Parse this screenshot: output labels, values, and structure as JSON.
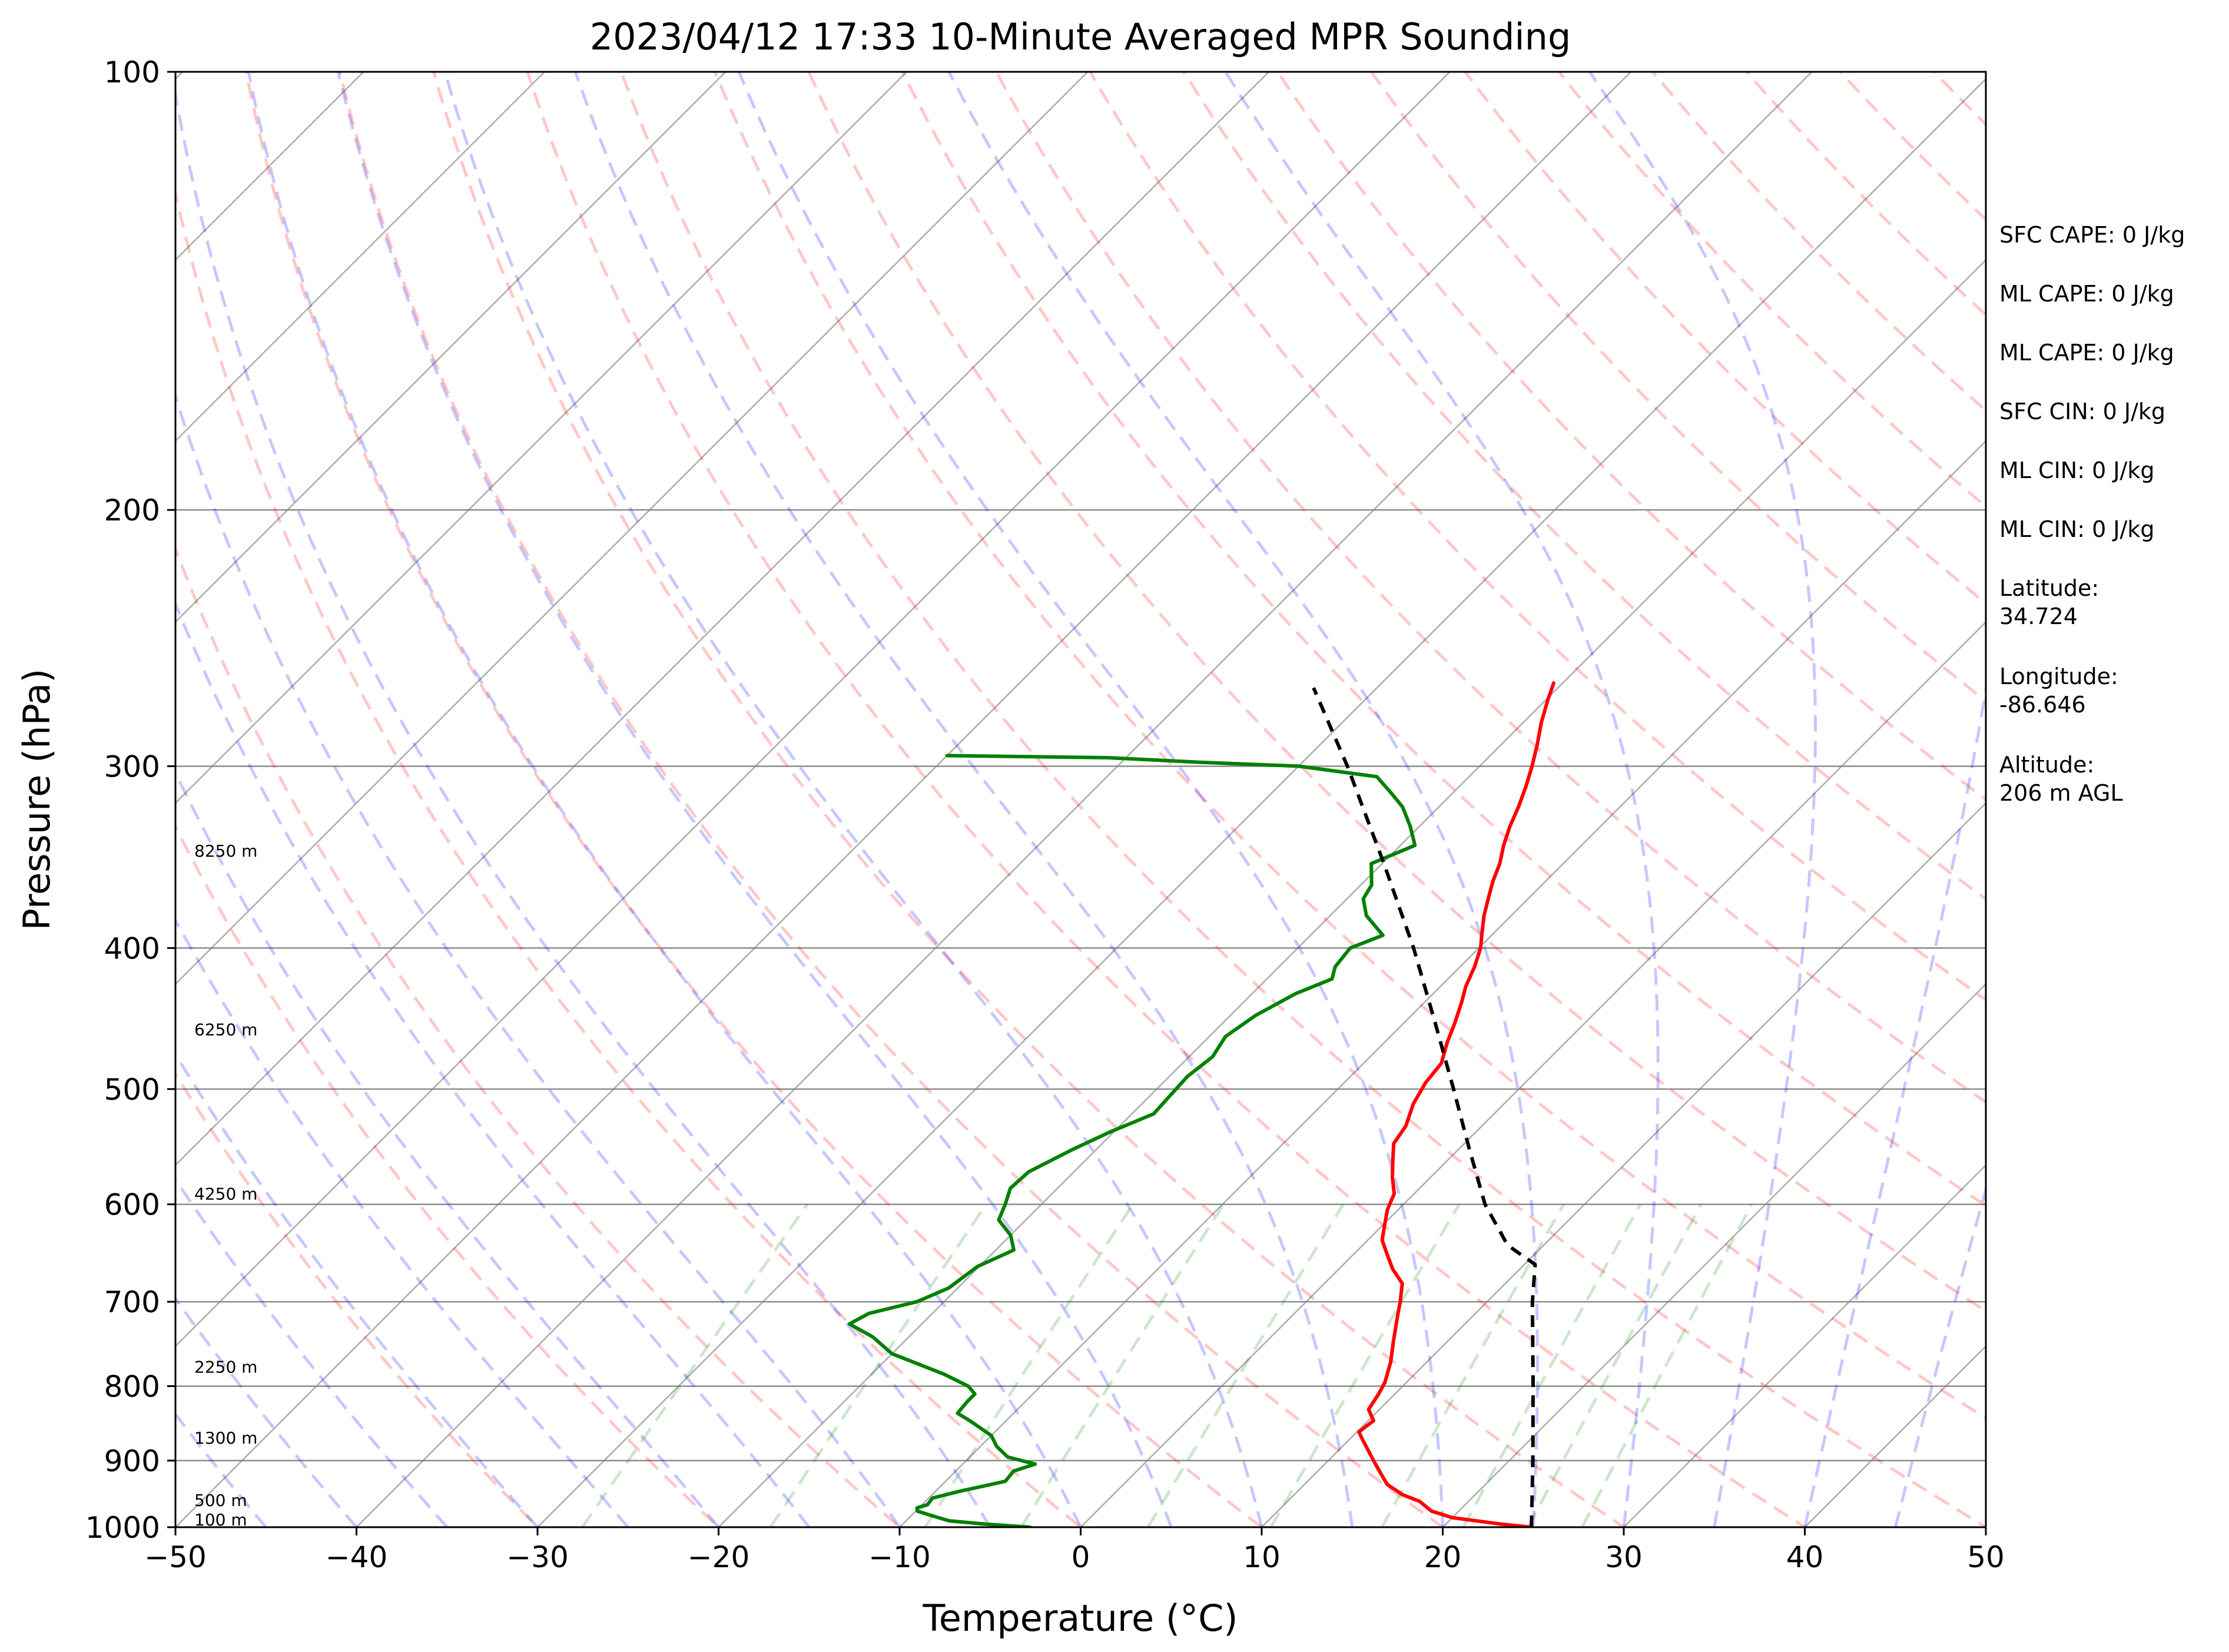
{
  "chart_data": {
    "type": "line",
    "title": "2023/04/12 17:33 10-Minute Averaged MPR Sounding",
    "xlabel": "Temperature (°C)",
    "ylabel": "Pressure (hPa)",
    "xlim": [
      -50,
      50
    ],
    "ylim": [
      1000,
      100
    ],
    "y_scale": "log",
    "grid": true,
    "x_ticks": [
      -50,
      -40,
      -30,
      -20,
      -10,
      0,
      10,
      20,
      30,
      40,
      50
    ],
    "x_tick_labels": [
      "−50",
      "−40",
      "−30",
      "−20",
      "−10",
      "0",
      "10",
      "20",
      "30",
      "40",
      "50"
    ],
    "y_ticks": [
      1000,
      900,
      800,
      700,
      600,
      500,
      400,
      300,
      200,
      100
    ],
    "y_tick_labels": [
      "1000",
      "900",
      "800",
      "700",
      "600",
      "500",
      "400",
      "300",
      "200",
      "100"
    ],
    "series": [
      {
        "role": "temperature",
        "color": "#ff0000",
        "points": [
          [
            1000,
            24.9
          ],
          [
            995,
            23.0
          ],
          [
            985,
            20.0
          ],
          [
            975,
            18.5
          ],
          [
            960,
            17.3
          ],
          [
            950,
            16.0
          ],
          [
            935,
            14.6
          ],
          [
            920,
            13.7
          ],
          [
            900,
            12.5
          ],
          [
            870,
            10.7
          ],
          [
            860,
            10.1
          ],
          [
            845,
            10.3
          ],
          [
            830,
            9.4
          ],
          [
            810,
            9.1
          ],
          [
            795,
            8.8
          ],
          [
            770,
            8.0
          ],
          [
            745,
            7.0
          ],
          [
            715,
            5.8
          ],
          [
            700,
            5.2
          ],
          [
            680,
            4.3
          ],
          [
            665,
            3.0
          ],
          [
            650,
            1.9
          ],
          [
            635,
            0.8
          ],
          [
            620,
            0.1
          ],
          [
            605,
            -0.6
          ],
          [
            590,
            -1.1
          ],
          [
            575,
            -2.1
          ],
          [
            560,
            -3.0
          ],
          [
            545,
            -3.9
          ],
          [
            530,
            -4.2
          ],
          [
            512,
            -5.0
          ],
          [
            495,
            -5.5
          ],
          [
            480,
            -5.7
          ],
          [
            465,
            -6.5
          ],
          [
            450,
            -7.2
          ],
          [
            435,
            -8.0
          ],
          [
            425,
            -8.6
          ],
          [
            412,
            -9.2
          ],
          [
            400,
            -9.9
          ],
          [
            390,
            -10.7
          ],
          [
            380,
            -11.5
          ],
          [
            370,
            -12.2
          ],
          [
            360,
            -12.9
          ],
          [
            350,
            -13.5
          ],
          [
            340,
            -14.3
          ],
          [
            330,
            -15.0
          ],
          [
            320,
            -15.6
          ],
          [
            310,
            -16.3
          ],
          [
            300,
            -17.1
          ],
          [
            290,
            -18.0
          ],
          [
            280,
            -19.0
          ],
          [
            270,
            -19.9
          ],
          [
            263,
            -20.5
          ]
        ]
      },
      {
        "role": "dewpoint",
        "color": "#008000",
        "points": [
          [
            1000,
            -2.8
          ],
          [
            995,
            -5.5
          ],
          [
            990,
            -7.6
          ],
          [
            983,
            -8.7
          ],
          [
            975,
            -9.9
          ],
          [
            970,
            -10.1
          ],
          [
            965,
            -9.7
          ],
          [
            955,
            -9.8
          ],
          [
            945,
            -8.7
          ],
          [
            930,
            -6.7
          ],
          [
            915,
            -6.8
          ],
          [
            905,
            -6.0
          ],
          [
            895,
            -7.9
          ],
          [
            880,
            -9.1
          ],
          [
            865,
            -10.0
          ],
          [
            845,
            -12.0
          ],
          [
            835,
            -13.1
          ],
          [
            820,
            -13.2
          ],
          [
            810,
            -13.2
          ],
          [
            800,
            -14.0
          ],
          [
            785,
            -16.0
          ],
          [
            760,
            -20.0
          ],
          [
            740,
            -22.0
          ],
          [
            725,
            -24.0
          ],
          [
            713,
            -23.5
          ],
          [
            700,
            -21.5
          ],
          [
            685,
            -20.5
          ],
          [
            662,
            -20.1
          ],
          [
            645,
            -19.0
          ],
          [
            630,
            -20.0
          ],
          [
            615,
            -21.5
          ],
          [
            600,
            -22.0
          ],
          [
            585,
            -22.6
          ],
          [
            570,
            -22.5
          ],
          [
            550,
            -21.3
          ],
          [
            535,
            -20.2
          ],
          [
            520,
            -18.8
          ],
          [
            505,
            -18.9
          ],
          [
            490,
            -19.0
          ],
          [
            475,
            -18.7
          ],
          [
            460,
            -19.1
          ],
          [
            445,
            -18.6
          ],
          [
            430,
            -17.6
          ],
          [
            420,
            -16.4
          ],
          [
            412,
            -16.9
          ],
          [
            400,
            -17.1
          ],
          [
            392,
            -16.0
          ],
          [
            380,
            -18.0
          ],
          [
            370,
            -19.1
          ],
          [
            362,
            -19.4
          ],
          [
            350,
            -20.6
          ],
          [
            340,
            -19.2
          ],
          [
            330,
            -20.5
          ],
          [
            320,
            -22.0
          ],
          [
            313,
            -23.4
          ],
          [
            305,
            -25.1
          ],
          [
            300,
            -30.0
          ],
          [
            298,
            -36.0
          ],
          [
            296,
            -41.0
          ],
          [
            295,
            -50.0
          ]
        ]
      },
      {
        "role": "parcel",
        "color": "#000000",
        "style": "dashed",
        "points": [
          [
            1000,
            24.9
          ],
          [
            900,
            21.3
          ],
          [
            800,
            17.2
          ],
          [
            700,
            12.5
          ],
          [
            660,
            10.6
          ],
          [
            640,
            8.0
          ],
          [
            600,
            4.5
          ],
          [
            550,
            0.6
          ],
          [
            500,
            -3.6
          ],
          [
            450,
            -8.3
          ],
          [
            400,
            -13.6
          ],
          [
            350,
            -19.9
          ],
          [
            300,
            -27.3
          ],
          [
            265,
            -33.5
          ]
        ]
      }
    ],
    "height_labels": [
      {
        "text": "100 m",
        "p": 988
      },
      {
        "text": "500 m",
        "p": 958
      },
      {
        "text": "1300 m",
        "p": 868
      },
      {
        "text": "2250 m",
        "p": 776
      },
      {
        "text": "4250 m",
        "p": 590
      },
      {
        "text": "6250 m",
        "p": 455
      },
      {
        "text": "8250 m",
        "p": 343
      }
    ],
    "annotations": [
      {
        "lines": [
          "SFC CAPE: 0 J/kg"
        ]
      },
      {
        "lines": [
          "ML CAPE: 0 J/kg"
        ]
      },
      {
        "lines": [
          "ML CAPE: 0 J/kg"
        ]
      },
      {
        "lines": [
          "SFC CIN: 0 J/kg"
        ]
      },
      {
        "lines": [
          "ML CIN: 0 J/kg"
        ]
      },
      {
        "lines": [
          "ML CIN: 0 J/kg"
        ]
      },
      {
        "lines": [
          "Latitude:",
          "34.724"
        ]
      },
      {
        "lines": [
          "Longitude:",
          "-86.646"
        ]
      },
      {
        "lines": [
          "Altitude:",
          "206 m AGL"
        ]
      }
    ],
    "background_lines": {
      "isotherms": {
        "color": "#808080",
        "values": [
          -160,
          -150,
          -140,
          -130,
          -120,
          -110,
          -100,
          -90,
          -80,
          -70,
          -60,
          -50,
          -40,
          -30,
          -20,
          -10,
          0,
          10,
          20,
          30,
          40,
          50
        ]
      },
      "dry_adiabats": {
        "color": "#ff0000",
        "style": "dashed",
        "values_c": [
          -30,
          -20,
          -10,
          0,
          10,
          20,
          30,
          40,
          50,
          60,
          70,
          80,
          90,
          100,
          110,
          120,
          130,
          140,
          150,
          160,
          170,
          180,
          190,
          200
        ]
      },
      "moist_adiabats": {
        "color": "#0000ff",
        "style": "dashed",
        "values_c": [
          -45,
          -40,
          -35,
          -30,
          -25,
          -20,
          -15,
          -10,
          -5,
          0,
          5,
          10,
          15,
          20,
          25,
          30,
          35,
          40,
          45
        ]
      },
      "mixing_ratios": {
        "color": "#008000",
        "style": "dashed",
        "values_gkg": [
          0.4,
          1,
          2,
          3,
          5,
          8,
          12,
          16,
          20,
          24
        ],
        "top_hpa": 600
      }
    }
  }
}
